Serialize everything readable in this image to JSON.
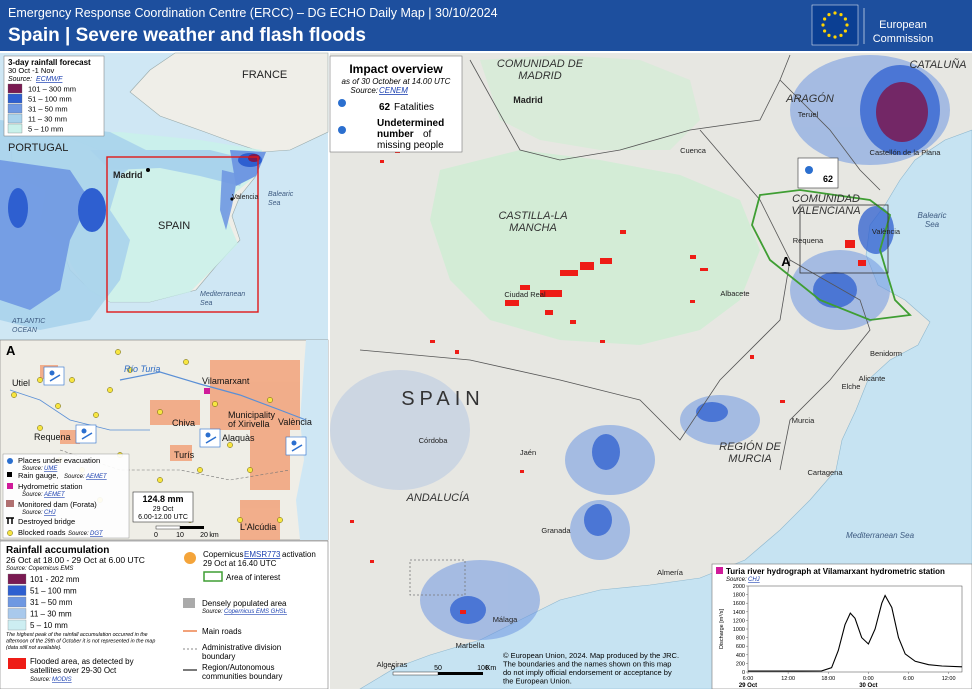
{
  "header": {
    "subtitle": "Emergency Response Coordination Centre (ERCC) – DG ECHO Daily Map | 30/10/2024",
    "title": "Spain | Severe weather and flash floods",
    "logo": [
      "European",
      "Commission"
    ]
  },
  "impact": {
    "title": "Impact overview",
    "as_of": "as of 30 October at 14.00 UTC",
    "source_prefix": "Source: ",
    "source": "CENEM",
    "fatalities_value": "62",
    "fatalities_label": "Fatalities",
    "missing_bold": [
      "Undetermined",
      "number"
    ],
    "missing_rest": [
      "of",
      "missing people"
    ]
  },
  "overview_map": {
    "legend_title": "3-day rainfall forecast",
    "legend_period": "30 Oct -1 Nov",
    "legend_source_prefix": "Source: ",
    "legend_source": "ECMWF",
    "legend_items": [
      {
        "label": "101 – 300 mm",
        "color": "#7a1a52"
      },
      {
        "label": "51 – 100 mm",
        "color": "#2e5fd0"
      },
      {
        "label": "31 – 50 mm",
        "color": "#6f98e2"
      },
      {
        "label": "11 – 30 mm",
        "color": "#a9d3ec"
      },
      {
        "label": "5 – 10 mm",
        "color": "#c9f1ea"
      }
    ],
    "labels": [
      "FRANCE",
      "PORTUGAL",
      "SPAIN",
      "Madrid",
      "Valencia",
      [
        "Balearic",
        "Sea"
      ],
      [
        "Mediterranean",
        "Sea"
      ],
      [
        "ATLANTIC",
        "OCEAN"
      ]
    ]
  },
  "inset_a": {
    "marker": "A",
    "labels": [
      "Utiel",
      "Requena",
      "Chiva",
      "Turís",
      "Vilamarxant",
      [
        "Municipality",
        "of Xirivella"
      ],
      "Alaquàs",
      "València",
      "L'Alcúdia",
      "Río Turia"
    ],
    "callout": [
      "124.8 mm",
      "29 Oct",
      "6.00-12.00 UTC"
    ],
    "legend": {
      "evacuation": "Places under evacuation",
      "evacuation_source_prefix": "Source: ",
      "evacuation_source": "UME",
      "rain_gauge": "Rain gauge, ",
      "rain_gauge_source_prefix": "Source: ",
      "rain_gauge_source": "AEMET",
      "hydrometric": "Hydrometric station",
      "hydrometric_source_prefix": "Source: ",
      "hydrometric_source": "AEMET",
      "dam": "Monitored dam (Forata)",
      "dam_source_prefix": "Source: ",
      "dam_source": "CHJ",
      "bridge": "Destroyed bridge",
      "roads": "Blocked roads ",
      "roads_source_prefix": "Source: ",
      "roads_source": "DGT"
    },
    "scale": [
      "0",
      "10",
      "20",
      "km"
    ]
  },
  "legend": {
    "title": "Rainfall accumulation",
    "period": "26 Oct at 18.00 - 29 Oct at 6.00 UTC",
    "source": "Source: Copernicus EMS",
    "items": [
      {
        "label": "101 - 202 mm",
        "color": "#7a1a52"
      },
      {
        "label": "51 – 100 mm",
        "color": "#2e5fd0"
      },
      {
        "label": "31 – 50 mm",
        "color": "#6f98e2"
      },
      {
        "label": "11 – 30 mm",
        "color": "#a9c9ec"
      },
      {
        "label": "5 – 10 mm",
        "color": "#cdeef2"
      }
    ],
    "note": [
      "The highest peak of the rainfall accumulation occurred in the",
      "afternoon of the 29th of October it is not represented in the map",
      "(data still not available)."
    ],
    "flood": [
      "Flooded area, as detected by",
      "satellites over 29-30 Oct"
    ],
    "flood_color": "#ee1c16",
    "flood_source_prefix": "Source: ",
    "flood_source": "MODIS",
    "cems_prefix": "Copernicus ",
    "cems_link": "EMSR773",
    "cems_suffix": " activation",
    "cems_time": "29 Oct at 16.40 UTC",
    "area_of_interest": "Area of interest",
    "populated": "Densely populated area",
    "populated_source_prefix": "Source: ",
    "populated_source": "Copernicus EMS GHSL",
    "roads": "Main roads",
    "admin": [
      "Administrative division",
      "boundary"
    ],
    "region": [
      "Region/Autonomous",
      "communities boundary"
    ]
  },
  "main_map": {
    "country": "SPAIN",
    "regions": [
      [
        "COMUNIDAD DE",
        "MADRID"
      ],
      [
        "CASTILLA-LA",
        "MANCHA"
      ],
      [
        "ARAGÓN"
      ],
      [
        "CATALUÑA"
      ],
      [
        "COMUNIDAD",
        "VALENCIANA"
      ],
      [
        "REGIÓN DE",
        "MURCIA"
      ],
      [
        "ANDALUCÍA"
      ]
    ],
    "cities": [
      "Madrid",
      "Cuenca",
      "Teruel",
      "Castellón de la Plana",
      "València",
      "Requena",
      "Albacete",
      "Alicante",
      "Benidorm",
      "Elche",
      "Murcia",
      "Cartagena",
      "Córdoba",
      "Jaén",
      "Granada",
      "Almería",
      "Málaga",
      "Marbella",
      "Algeciras",
      "Ciudad Real"
    ],
    "seas": [
      [
        "Balearic",
        "Sea"
      ],
      [
        "Mediterranean Sea"
      ]
    ],
    "marker": "A",
    "scale": [
      "0",
      "50",
      "100",
      "Km"
    ],
    "copyright": [
      "© European Union, 2024. Map produced by the JRC.",
      "The boundaries and the names shown on this map",
      "do not imply official endorsement or acceptance by",
      "the European Union."
    ]
  },
  "chart_data": {
    "type": "line",
    "title": "Turia river hydrograph at Vilamarxant hydrometric station",
    "source_prefix": "Source: ",
    "source": "CHJ",
    "y_label": "Discharge [m³/s]",
    "color": "#000000",
    "x": [
      6,
      10,
      14,
      17,
      18.5,
      19.5,
      20.5,
      21.3,
      22,
      23,
      24,
      25,
      26,
      26.5,
      27.5,
      28.5,
      29.5,
      31,
      33,
      35,
      38
    ],
    "values": [
      20,
      20,
      20,
      25,
      100,
      500,
      1100,
      1370,
      1250,
      800,
      650,
      1000,
      1600,
      1780,
      1500,
      800,
      420,
      250,
      170,
      140,
      120
    ],
    "xlim": [
      6,
      38
    ],
    "ylim": [
      0,
      2000
    ],
    "xticks": [
      {
        "value": 6,
        "label": "6:00"
      },
      {
        "value": 12,
        "label": "12:00"
      },
      {
        "value": 18,
        "label": "18:00"
      },
      {
        "value": 24,
        "label": "0:00"
      },
      {
        "value": 30,
        "label": "6:00"
      },
      {
        "value": 36,
        "label": "12:00"
      }
    ],
    "date_ticks": [
      {
        "value": 6,
        "label": "29 Oct"
      },
      {
        "value": 24,
        "label": "30 Oct"
      }
    ],
    "yticks": [
      0,
      200,
      400,
      600,
      800,
      1000,
      1200,
      1400,
      1600,
      1800,
      2000
    ],
    "grid": false
  }
}
